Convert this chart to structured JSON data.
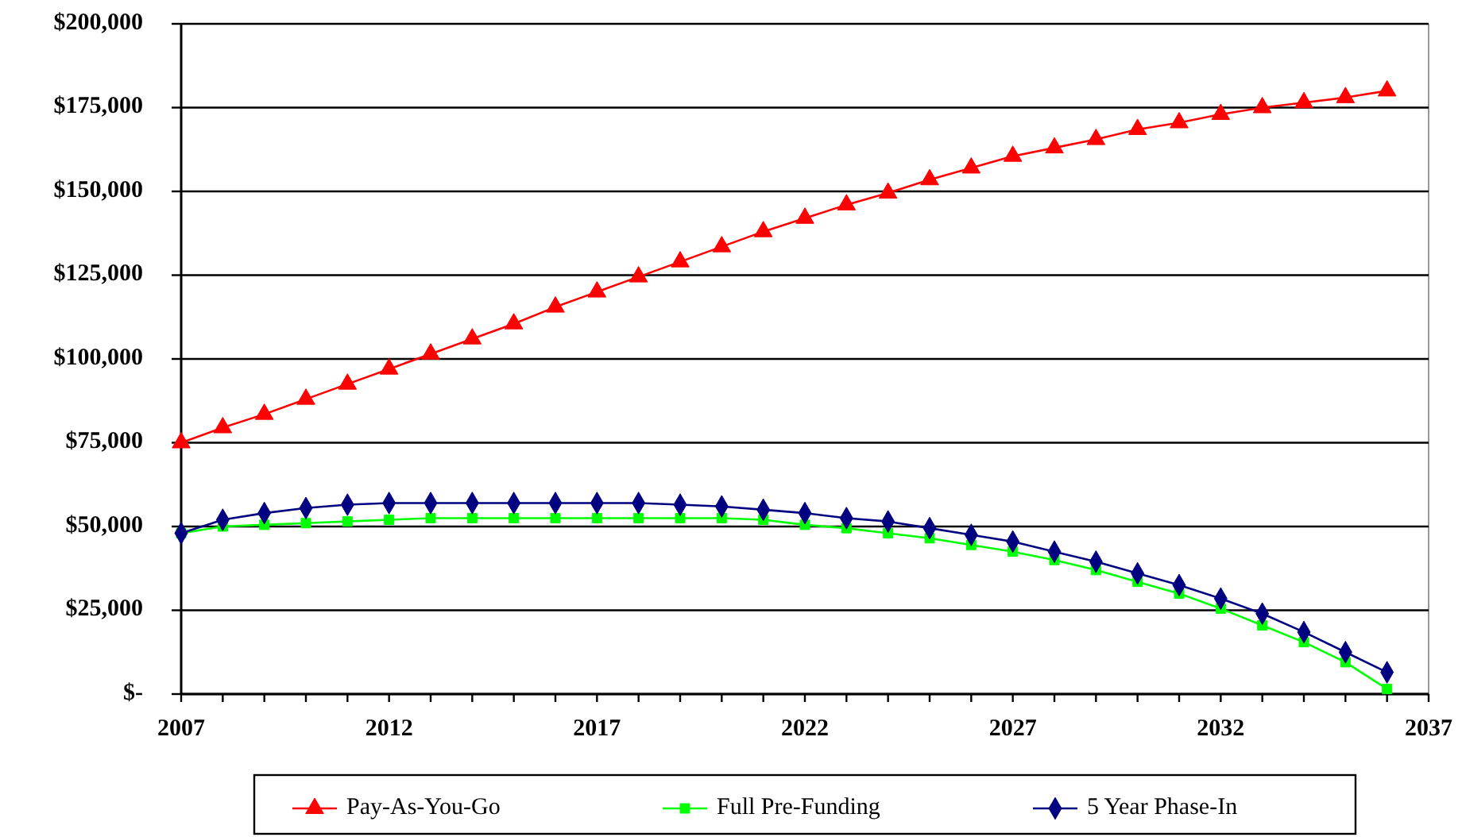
{
  "chart_data": {
    "type": "line",
    "x": [
      2007,
      2008,
      2009,
      2010,
      2011,
      2012,
      2013,
      2014,
      2015,
      2016,
      2017,
      2018,
      2019,
      2020,
      2021,
      2022,
      2023,
      2024,
      2025,
      2026,
      2027,
      2028,
      2029,
      2030,
      2031,
      2032,
      2033,
      2034,
      2035,
      2036
    ],
    "series": [
      {
        "name": "Pay-As-You-Go",
        "color": "#ff0000",
        "marker": "triangle",
        "values": [
          75000,
          79500,
          83500,
          88000,
          92500,
          97000,
          101500,
          106000,
          110500,
          115500,
          120000,
          124500,
          129000,
          133500,
          138000,
          142000,
          146000,
          149500,
          153500,
          157000,
          160500,
          163000,
          165500,
          168500,
          170500,
          173000,
          175000,
          176500,
          178000,
          180000
        ]
      },
      {
        "name": "Full Pre-Funding",
        "color": "#00ff00",
        "marker": "square",
        "values": [
          48000,
          50000,
          50500,
          51000,
          51500,
          52000,
          52500,
          52500,
          52500,
          52500,
          52500,
          52500,
          52500,
          52500,
          52000,
          50500,
          49500,
          48000,
          46500,
          44500,
          42500,
          40000,
          37000,
          33500,
          30000,
          25500,
          20500,
          15500,
          9500,
          1500
        ]
      },
      {
        "name": "5 Year Phase-In",
        "color": "#000080",
        "marker": "diamond",
        "values": [
          48000,
          52000,
          54000,
          55500,
          56500,
          57000,
          57000,
          57000,
          57000,
          57000,
          57000,
          57000,
          56500,
          56000,
          55000,
          54000,
          52500,
          51500,
          49500,
          47500,
          45500,
          42500,
          39500,
          36000,
          32500,
          28500,
          24000,
          18500,
          12500,
          6500
        ]
      }
    ],
    "xlim": [
      2007,
      2037
    ],
    "xticks": [
      2007,
      {
        "value": 2008,
        "label": null
      },
      {
        "value": 2009,
        "label": null
      },
      {
        "value": 2010,
        "label": null
      },
      {
        "value": 2011,
        "label": null
      },
      2012,
      {
        "value": 2013,
        "label": null
      },
      {
        "value": 2014,
        "label": null
      },
      {
        "value": 2015,
        "label": null
      },
      {
        "value": 2016,
        "label": null
      },
      2017,
      {
        "value": 2018,
        "label": null
      },
      {
        "value": 2019,
        "label": null
      },
      {
        "value": 2020,
        "label": null
      },
      {
        "value": 2021,
        "label": null
      },
      2022,
      {
        "value": 2023,
        "label": null
      },
      {
        "value": 2024,
        "label": null
      },
      {
        "value": 2025,
        "label": null
      },
      {
        "value": 2026,
        "label": null
      },
      2027,
      {
        "value": 2028,
        "label": null
      },
      {
        "value": 2029,
        "label": null
      },
      {
        "value": 2030,
        "label": null
      },
      {
        "value": 2031,
        "label": null
      },
      2032,
      {
        "value": 2033,
        "label": null
      },
      {
        "value": 2034,
        "label": null
      },
      {
        "value": 2035,
        "label": null
      },
      {
        "value": 2036,
        "label": null
      },
      2037
    ],
    "ylim": [
      0,
      200000
    ],
    "yticks": [
      {
        "value": 0,
        "label": "$-"
      },
      {
        "value": 25000,
        "label": "$25,000"
      },
      {
        "value": 50000,
        "label": "$50,000"
      },
      {
        "value": 75000,
        "label": "$75,000"
      },
      {
        "value": 100000,
        "label": "$100,000"
      },
      {
        "value": 125000,
        "label": "$125,000"
      },
      {
        "value": 150000,
        "label": "$150,000"
      },
      {
        "value": 175000,
        "label": "$175,000"
      },
      {
        "value": 200000,
        "label": "$200,000"
      }
    ],
    "grid": "y",
    "legend": "bottom"
  }
}
